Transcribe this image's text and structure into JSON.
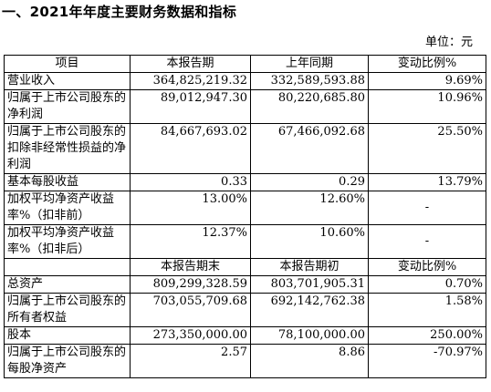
{
  "heading": "一、2021年年度主要财务数据和指标",
  "unit": "单位：元",
  "header1": [
    "项目",
    "本报告期",
    "上年同期",
    "变动比例%"
  ],
  "rows1": [
    {
      "label": "营业收入",
      "current": "364,825,219.32",
      "previous": "332,589,593.88",
      "change": "9.69%"
    },
    {
      "label": "归属于上市公司股东的净利润",
      "current": "89,012,947.30",
      "previous": "80,220,685.80",
      "change": "10.96%"
    },
    {
      "label": "归属于上市公司股东的扣除非经常性损益的净利润",
      "current": "84,667,693.02",
      "previous": "67,466,092.68",
      "change": "25.50%"
    },
    {
      "label": "基本每股收益",
      "current": "0.33",
      "previous": "0.29",
      "change": "13.79%"
    },
    {
      "label": "加权平均净资产收益率%（扣非前）",
      "current": "13.00%",
      "previous": "12.60%",
      "change": "-"
    },
    {
      "label": "加权平均净资产收益率%（扣非后）",
      "current": "12.37%",
      "previous": "10.60%",
      "change": "-"
    }
  ],
  "header2": [
    "",
    "本报告期末",
    "本报告期初",
    "变动比例%"
  ],
  "rows2": [
    {
      "label": "总资产",
      "current": "809,299,328.59",
      "previous": "803,701,905.31",
      "change": "0.70%"
    },
    {
      "label": "归属于上市公司股东的所有者权益",
      "current": "703,055,709.68",
      "previous": "692,142,762.38",
      "change": "1.58%"
    },
    {
      "label": "股本",
      "current": "273,350,000.00",
      "previous": "78,100,000.00",
      "change": "250.00%"
    },
    {
      "label": "归属于上市公司股东的每股净资产",
      "current": "2.57",
      "previous": "8.86",
      "change": "-70.97%"
    }
  ]
}
